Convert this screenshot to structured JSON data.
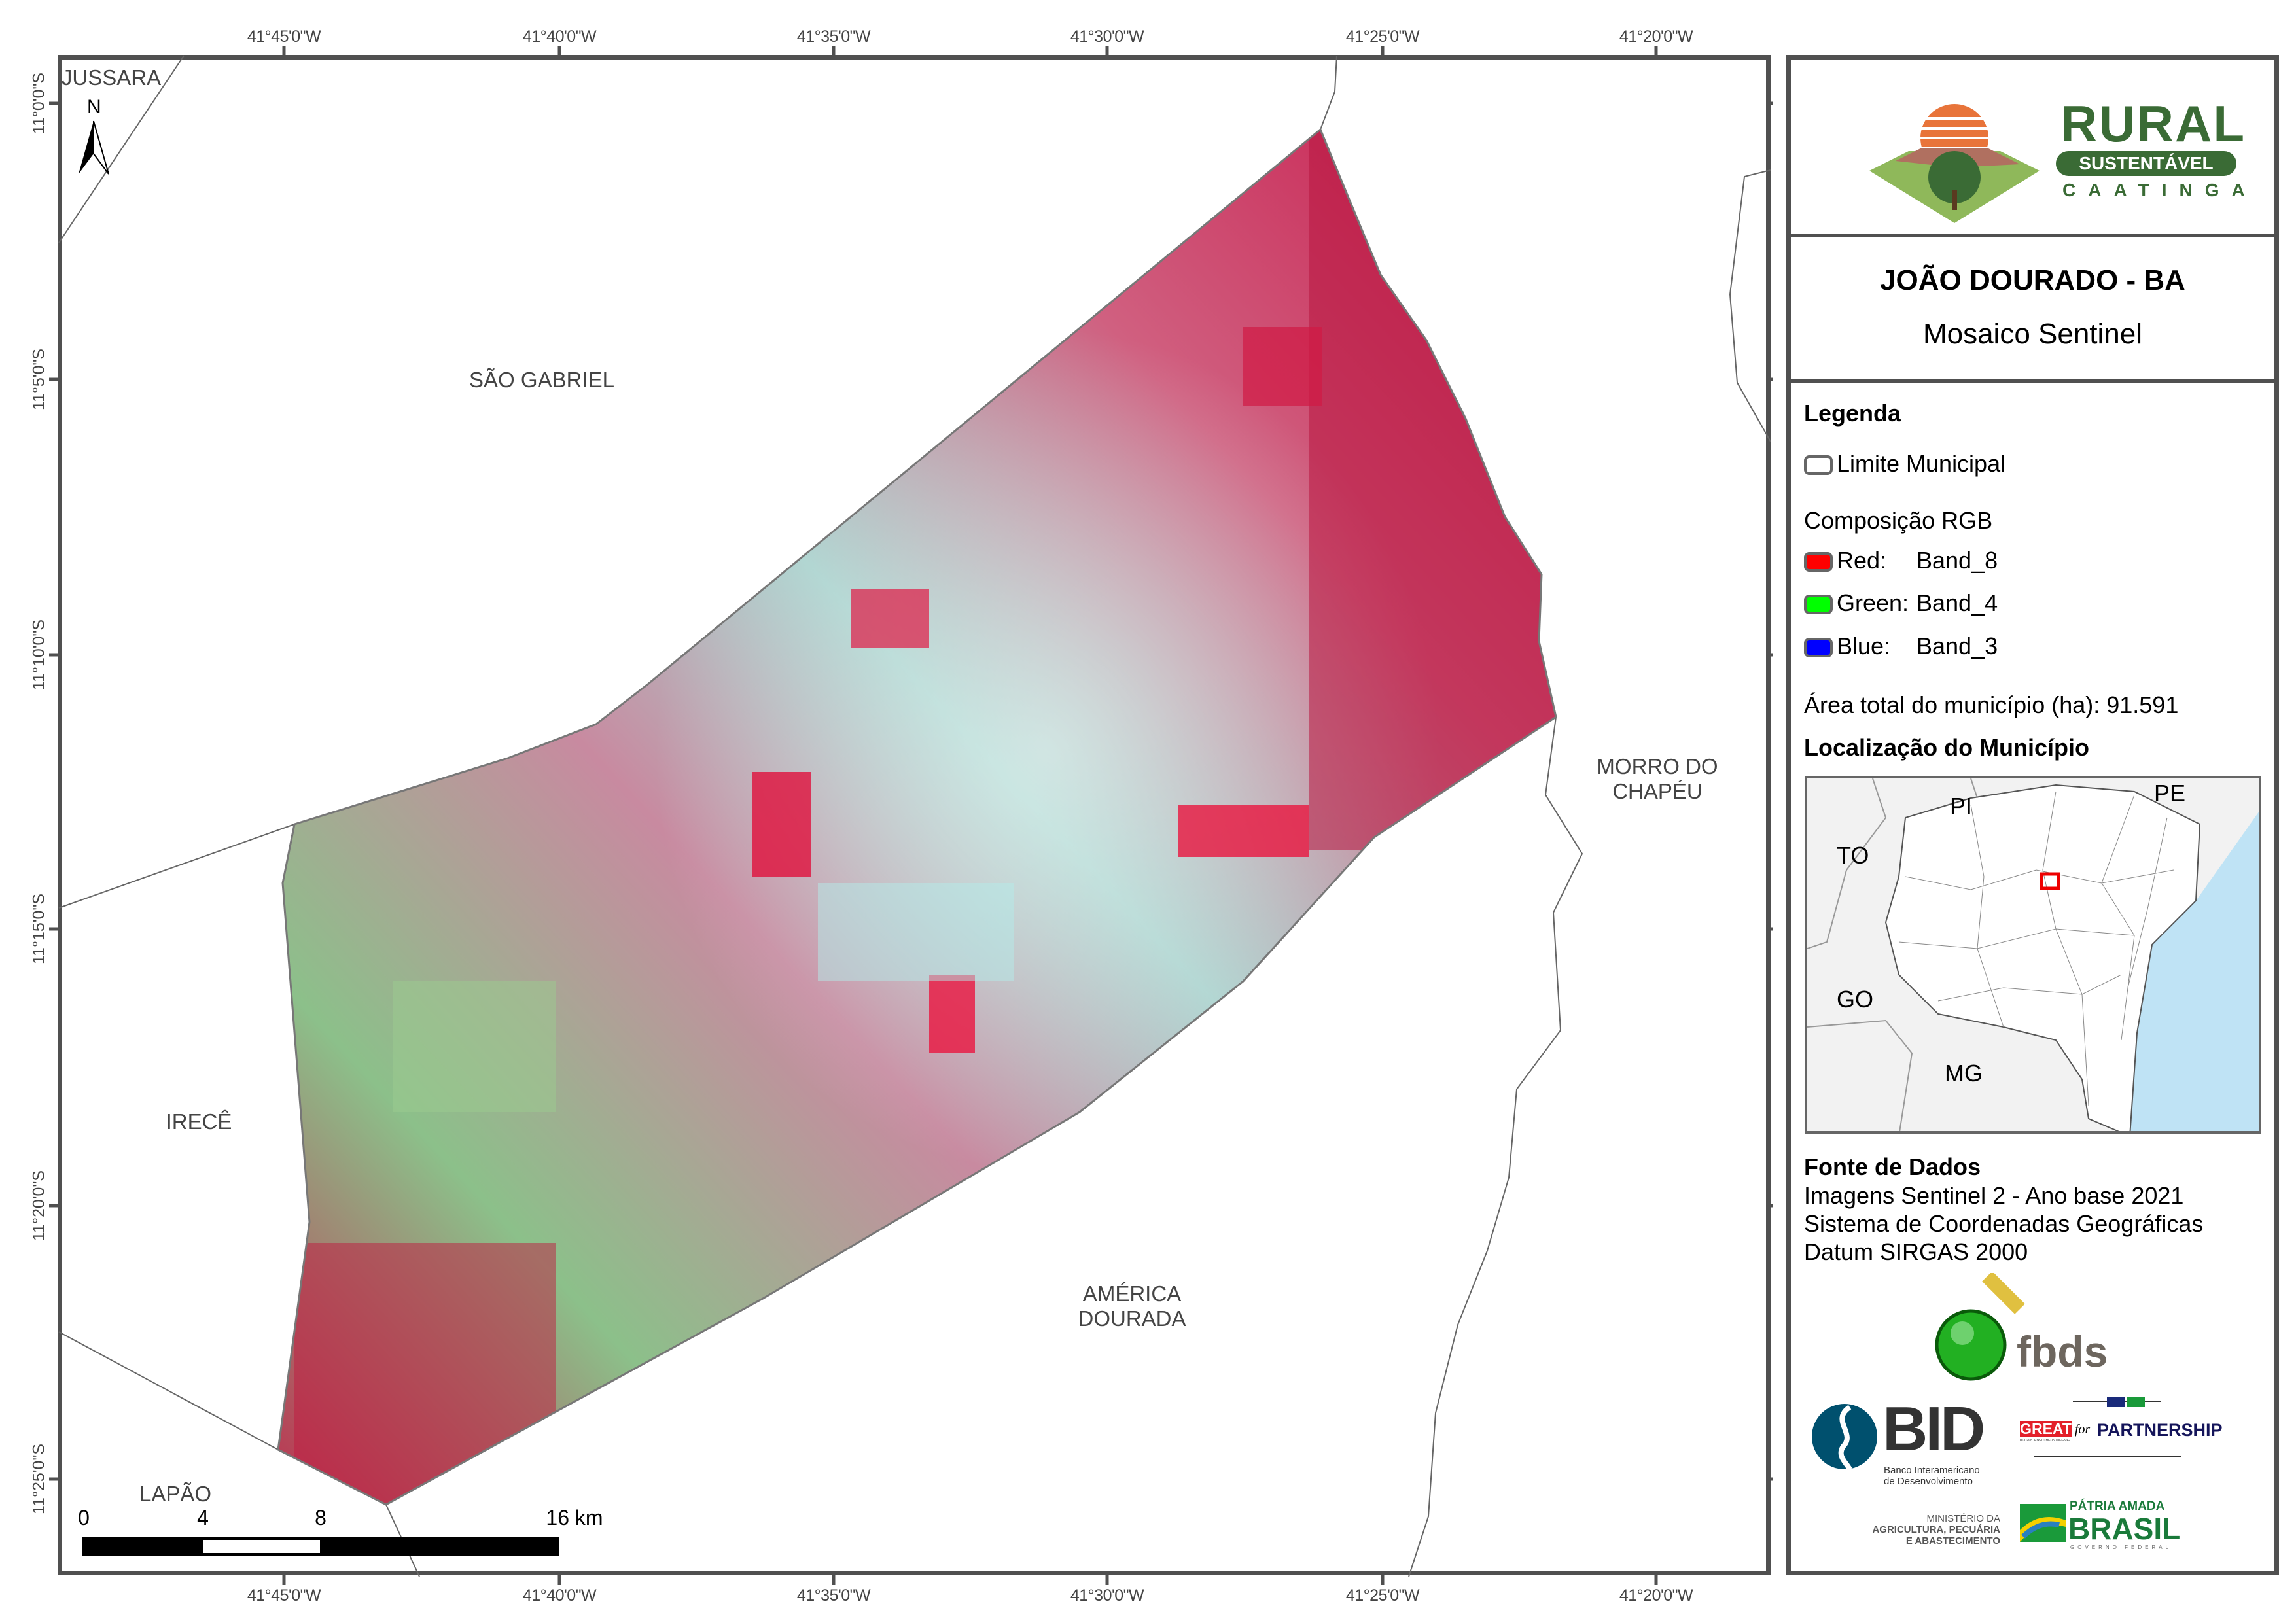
{
  "map": {
    "top_ticks": [
      "41°45'0\"W",
      "41°40'0\"W",
      "41°35'0\"W",
      "41°30'0\"W",
      "41°25'0\"W",
      "41°20'0\"W"
    ],
    "left_ticks": [
      "11°0'0\"S",
      "11°5'0\"S",
      "11°10'0\"S",
      "11°15'0\"S",
      "11°20'0\"S",
      "11°25'0\"S"
    ],
    "places": {
      "jussara": "JUSSARA",
      "sao_gabriel": "SÃO GABRIEL",
      "morro_1": "MORRO DO",
      "morro_2": "CHAPÉU",
      "irece": "IRECÊ",
      "america_1": "AMÉRICA",
      "america_2": "DOURADA",
      "lapao": "LAPÃO"
    },
    "north_label": "N",
    "scale": {
      "labels": [
        "0",
        "4",
        "8",
        "16 km"
      ]
    }
  },
  "panel": {
    "logo": {
      "rural": "RURAL",
      "sustentavel": "SUSTENTÁVEL",
      "caatinga": "CAATINGA"
    },
    "title": "JOÃO DOURADO - BA",
    "subtitle": "Mosaico Sentinel",
    "legend": {
      "heading": "Legenda",
      "limite": "Limite Municipal",
      "rgb_heading": "Composição RGB",
      "bands": [
        {
          "label": "Red:",
          "band": "Band_8",
          "color": "#ff0000"
        },
        {
          "label": "Green:",
          "band": "Band_4",
          "color": "#00ff00"
        },
        {
          "label": "Blue:",
          "band": "Band_3",
          "color": "#0000ff"
        }
      ],
      "area": "Área total do município (ha): 91.591",
      "location_heading": "Localização do Município"
    },
    "inset": {
      "labels": {
        "pi": "PI",
        "pe": "PE",
        "to": "TO",
        "go": "GO",
        "mg": "MG"
      }
    },
    "sources": {
      "heading": "Fonte de Dados",
      "lines": [
        "Imagens Sentinel 2 - Ano base 2021",
        "Sistema de Coordenadas Geográficas",
        "Datum SIRGAS 2000"
      ]
    },
    "logos": {
      "fbds": "fbds",
      "bid": "BID",
      "bid_sub1": "Banco Interamericano",
      "bid_sub2": "de Desenvolvimento",
      "great": "GREAT",
      "great_sub": "BRITAIN & NORTHERN IRELAND",
      "for": "for",
      "partnership": "PARTNERSHIP",
      "min1": "MINISTÉRIO DA",
      "min2": "AGRICULTURA, PECUÁRIA",
      "min3": "E ABASTECIMENTO",
      "patria": "PÁTRIA AMADA",
      "brasil": "BRASIL",
      "gov": "GOVERNO FEDERAL"
    }
  },
  "colors": {
    "frame": "#505050",
    "brand_green": "#3a6b35",
    "ocean": "#bfe3f5"
  }
}
